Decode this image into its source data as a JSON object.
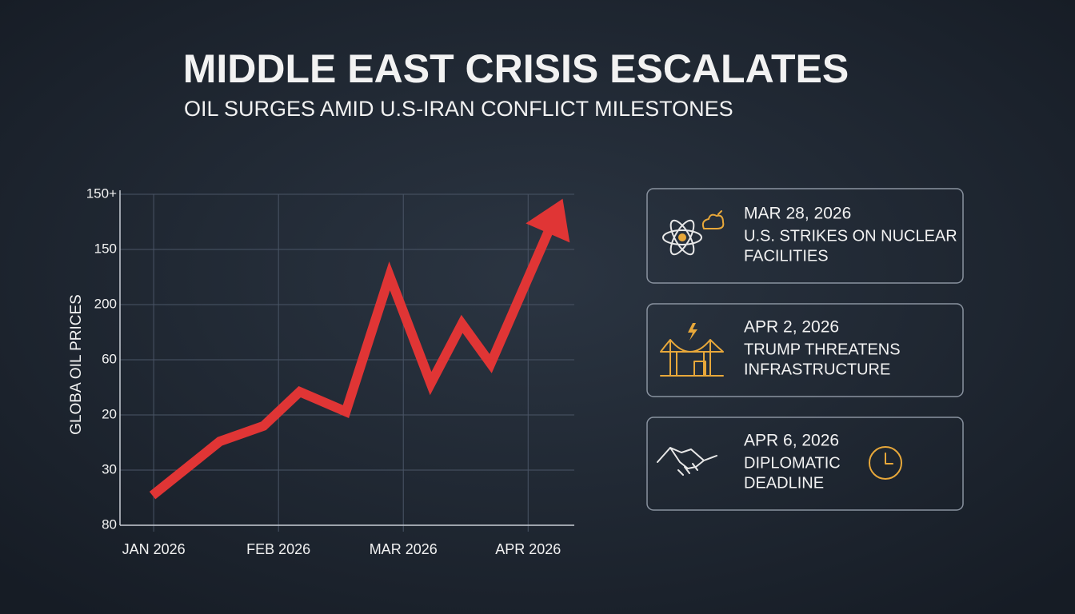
{
  "chart_data": {
    "type": "line",
    "title": "MIDDLE EAST CRISIS ESCALATES",
    "subtitle": "OIL SURGES AMID U.S-IRAN CONFLICT MILESTONES",
    "y_label": "GLOBA OIL PRICES",
    "x": [
      -0.01,
      0.53,
      0.88,
      1.17,
      1.54,
      1.89,
      2.22,
      2.47,
      2.7,
      3.26
    ],
    "series": [
      {
        "color": "#e03535",
        "values": [
          0.54,
          1.52,
          1.8,
          2.42,
          2.06,
          4.52,
          2.57,
          3.65,
          2.93,
          5.83
        ]
      }
    ],
    "xlim": [
      -0.27,
      3.37
    ],
    "xticks": [
      {
        "value": 0,
        "label": "JAN 2026"
      },
      {
        "value": 1,
        "label": "FEB 2026"
      },
      {
        "value": 2,
        "label": "MAR 2026"
      },
      {
        "value": 3,
        "label": "APR 2026"
      }
    ],
    "ylim": [
      0,
      6
    ],
    "yticks": [
      {
        "value": 0,
        "label": "80"
      },
      {
        "value": 1,
        "label": "30"
      },
      {
        "value": 2,
        "label": "20"
      },
      {
        "value": 3,
        "label": "60"
      },
      {
        "value": 4,
        "label": "200"
      },
      {
        "value": 5,
        "label": "150"
      },
      {
        "value": 6,
        "label": "150+"
      }
    ],
    "grid": true
  },
  "events": [
    {
      "date": "MAR 28, 2026",
      "lines": [
        "U.S. STRIKES ON NUCLEAR",
        "FACILITIES"
      ]
    },
    {
      "date": "APR 2, 2026",
      "lines": [
        "TRUMP THREATENS",
        "INFRASTRUCTURE"
      ]
    },
    {
      "date": "APR 6, 2026",
      "lines": [
        "DIPLOMATIC",
        "DEADLINE"
      ]
    }
  ]
}
